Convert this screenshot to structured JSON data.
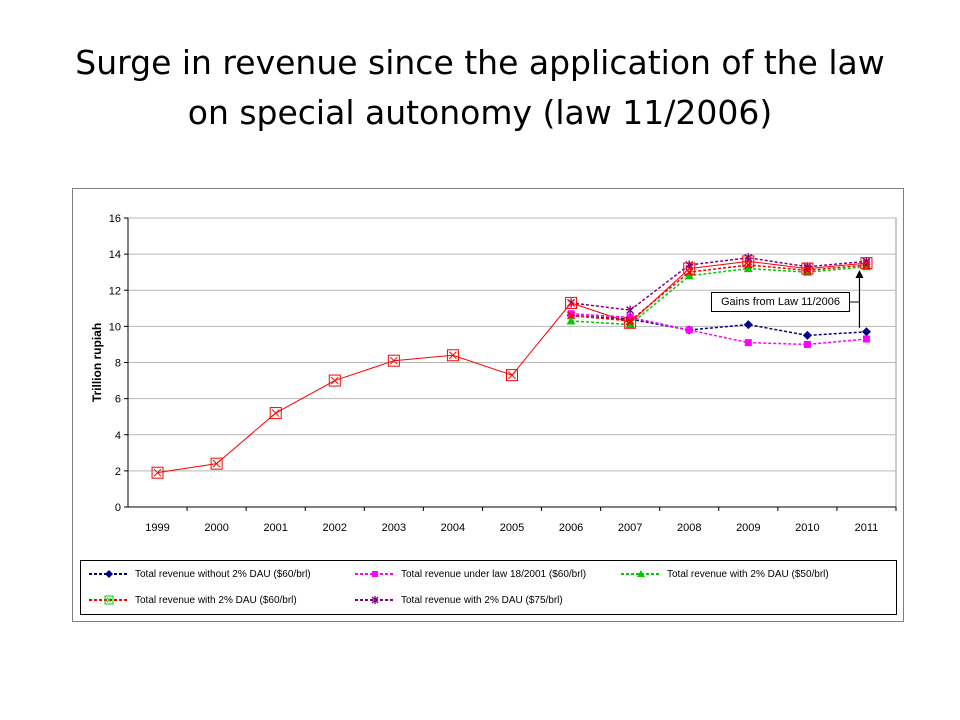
{
  "title": {
    "line1": "Surge in revenue since the application of the law",
    "line2": "on special autonomy (law 11/2006)"
  },
  "chart_data": {
    "type": "line",
    "ylabel": "Trillion rupiah",
    "xlabel": "",
    "ylim": [
      0,
      16
    ],
    "yticks": [
      "0",
      "2",
      "4",
      "6",
      "8",
      "10",
      "12",
      "14",
      "16"
    ],
    "categories": [
      "1999",
      "2000",
      "2001",
      "2002",
      "2003",
      "2004",
      "2005",
      "2006",
      "2007",
      "2008",
      "2009",
      "2010",
      "2011"
    ],
    "grid": "horizontal",
    "legend_position": "bottom",
    "series": [
      {
        "name": "Total revenue without 2% DAU ($60/brl)",
        "color": "#000080",
        "marker": "diamond",
        "values": [
          null,
          null,
          null,
          null,
          null,
          null,
          null,
          10.6,
          10.4,
          9.8,
          10.1,
          9.5,
          9.7
        ]
      },
      {
        "name": "Total revenue under law 18/2001 ($60/brl)",
        "color": "#ff00ff",
        "marker": "square",
        "values": [
          null,
          null,
          null,
          null,
          null,
          null,
          null,
          10.7,
          10.5,
          9.8,
          9.1,
          9.0,
          9.3
        ]
      },
      {
        "name": "Total revenue with 2% DAU ($50/brl)",
        "color": "#00cc00",
        "marker": "triangle",
        "values": [
          null,
          null,
          null,
          null,
          null,
          null,
          null,
          10.3,
          10.1,
          12.8,
          13.2,
          13.0,
          13.3
        ]
      },
      {
        "name": "Total revenue with 2% DAU ($60/brl)",
        "color": "#ff0000",
        "marker": "x",
        "values": [
          null,
          null,
          null,
          null,
          null,
          null,
          null,
          10.6,
          10.3,
          13.0,
          13.4,
          13.1,
          13.4
        ]
      },
      {
        "name": "Total revenue with 2% DAU ($75/brl)",
        "color": "#800080",
        "marker": "star",
        "values": [
          null,
          null,
          null,
          null,
          null,
          null,
          null,
          11.3,
          10.9,
          13.4,
          13.8,
          13.3,
          13.6
        ]
      },
      {
        "name": "",
        "color": "#ff0000",
        "marker": "boxed-x",
        "values": [
          1.9,
          2.4,
          5.2,
          7.0,
          8.1,
          8.4,
          7.3,
          11.3,
          10.2,
          13.2,
          13.6,
          13.2,
          13.5
        ]
      }
    ],
    "annotation": {
      "text": "Gains from Law 11/2006",
      "arrow_at": "2011"
    }
  }
}
